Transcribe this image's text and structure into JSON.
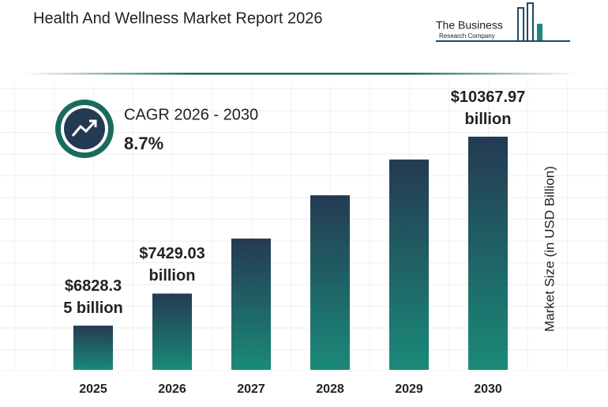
{
  "header": {
    "title": "Health And Wellness Market Report 2026",
    "logo_line1": "The Business",
    "logo_line2": "Research Company"
  },
  "cagr": {
    "label": "CAGR 2026 - 2030",
    "value": "8.7%"
  },
  "chart_data": {
    "type": "bar",
    "categories": [
      "2025",
      "2026",
      "2027",
      "2028",
      "2029",
      "2030"
    ],
    "values": [
      6828.35,
      7429.03,
      8460,
      9270,
      9940,
      10367.97
    ],
    "value_labels": [
      "$6828.35 billion",
      "$7429.03 billion",
      null,
      null,
      null,
      "$10367.97 billion"
    ],
    "y_label": "Market Size (in USD Billion)",
    "ylim": [
      6000,
      10500
    ],
    "color_top": "#243a52",
    "color_bottom": "#1a8a78"
  }
}
